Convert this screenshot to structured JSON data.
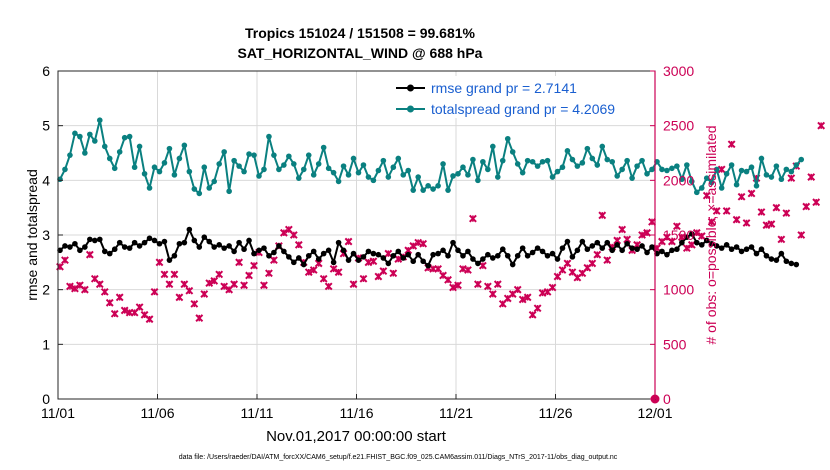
{
  "chart_data": {
    "type": "line",
    "title_line1": "Tropics 151024 / 151508 = 99.681%",
    "title_line2": "SAT_HORIZONTAL_WIND @ 688 hPa",
    "xlabel": "Nov.01,2017 00:00:00 start",
    "ylabel_left": "rmse and totalspread",
    "ylabel_right": "# of obs: o=possible; ×=assimilated",
    "footer": "data file: /Users/raeder/DAI/ATM_forcXX/CAM6_setup/f.e21.FHIST_BGC.f09_025.CAM6assim.011/Diags_NTrS_2017-11/obs_diag_output.nc",
    "x_tick_labels": [
      "11/01",
      "11/06",
      "11/11",
      "11/16",
      "11/21",
      "11/26",
      "12/01"
    ],
    "x_ticks_days": [
      0,
      5,
      10,
      15,
      20,
      25,
      30
    ],
    "xlim_days": [
      0,
      30
    ],
    "ylim_left": [
      0,
      6
    ],
    "y_ticks_left": [
      "0",
      "1",
      "2",
      "3",
      "4",
      "5",
      "6"
    ],
    "ylim_right": [
      0,
      3000
    ],
    "y_ticks_right": [
      "0",
      "500",
      "1000",
      "1500",
      "2000",
      "2500",
      "3000"
    ],
    "legend": [
      "rmse grand pr = 2.7141",
      "totalspread grand pr = 4.2069"
    ],
    "legend_position": "top-right",
    "colors": {
      "rmse": "#000000",
      "totalspread": "#0a8080",
      "obs": "#cc0055",
      "legend_text": "#1a5fd0"
    },
    "time_step_days": 0.25,
    "series": [
      {
        "name": "rmse",
        "axis": "left",
        "values": [
          2.72,
          2.8,
          2.78,
          2.84,
          2.72,
          2.78,
          2.92,
          2.9,
          2.92,
          2.7,
          2.66,
          2.74,
          2.86,
          2.78,
          2.76,
          2.86,
          2.8,
          2.86,
          2.94,
          2.9,
          2.84,
          2.88,
          2.54,
          2.62,
          2.84,
          2.86,
          3.1,
          2.9,
          2.78,
          2.96,
          2.88,
          2.78,
          2.82,
          2.76,
          2.8,
          2.7,
          2.86,
          2.74,
          2.9,
          2.66,
          2.72,
          2.76,
          2.62,
          2.68,
          2.8,
          2.7,
          2.6,
          2.5,
          2.58,
          2.46,
          2.62,
          2.7,
          2.56,
          2.66,
          2.72,
          2.5,
          2.86,
          2.72,
          2.54,
          2.66,
          2.54,
          2.6,
          2.7,
          2.66,
          2.64,
          2.58,
          2.48,
          2.62,
          2.7,
          2.58,
          2.64,
          2.52,
          2.64,
          2.52,
          2.44,
          2.64,
          2.66,
          2.72,
          2.62,
          2.86,
          2.72,
          2.62,
          2.7,
          2.56,
          2.48,
          2.56,
          2.64,
          2.58,
          2.62,
          2.74,
          2.62,
          2.46,
          2.62,
          2.76,
          2.62,
          2.68,
          2.76,
          2.7,
          2.62,
          2.66,
          2.56,
          2.76,
          2.88,
          2.6,
          2.72,
          2.88,
          2.74,
          2.8,
          2.86,
          2.76,
          2.86,
          2.72,
          2.82,
          2.72,
          2.84,
          2.76,
          2.74,
          2.8,
          2.68,
          2.78,
          2.66,
          2.7,
          2.64,
          2.72,
          2.74,
          2.86,
          2.96,
          3.02,
          2.86,
          2.82,
          2.9,
          2.84,
          2.8,
          2.76,
          2.82,
          2.74,
          2.78,
          2.7,
          2.74,
          2.78,
          2.66,
          2.74,
          2.62,
          2.56,
          2.54,
          2.66,
          2.52,
          2.48,
          2.46
        ]
      },
      {
        "name": "totalspread",
        "axis": "left",
        "values": [
          4.02,
          4.2,
          4.46,
          4.86,
          4.8,
          4.5,
          4.84,
          4.72,
          5.1,
          4.62,
          4.4,
          4.22,
          4.52,
          4.78,
          4.8,
          4.24,
          4.62,
          4.12,
          3.86,
          4.24,
          4.16,
          4.32,
          4.58,
          4.1,
          4.4,
          4.64,
          4.16,
          3.84,
          3.76,
          4.24,
          3.86,
          3.98,
          4.3,
          4.52,
          3.8,
          4.36,
          4.26,
          4.16,
          4.48,
          4.46,
          4.08,
          4.2,
          4.8,
          4.46,
          4.2,
          4.28,
          4.44,
          4.3,
          4.04,
          4.2,
          4.46,
          4.1,
          4.3,
          4.6,
          4.22,
          4.14,
          3.98,
          4.26,
          4.1,
          4.4,
          4.14,
          4.28,
          4.06,
          4.0,
          4.18,
          4.36,
          4.06,
          4.24,
          4.4,
          4.1,
          4.18,
          3.82,
          4.06,
          3.82,
          3.9,
          3.84,
          3.9,
          4.3,
          3.82,
          4.08,
          4.12,
          4.24,
          4.1,
          4.38,
          4.0,
          4.34,
          4.2,
          4.62,
          4.06,
          4.36,
          4.76,
          4.52,
          4.3,
          4.14,
          4.36,
          4.34,
          4.26,
          4.34,
          4.36,
          4.06,
          4.16,
          4.24,
          4.54,
          4.38,
          4.26,
          4.32,
          4.58,
          4.4,
          4.28,
          4.62,
          4.38,
          4.34,
          4.08,
          4.2,
          4.36,
          4.04,
          4.26,
          4.36,
          4.12,
          4.2,
          4.34,
          4.2,
          4.18,
          4.22,
          4.26,
          4.02,
          4.28,
          3.98,
          3.78,
          3.86,
          4.04,
          3.96,
          4.2,
          3.86,
          4.12,
          4.28,
          3.92,
          4.18,
          4.16,
          4.24,
          3.9,
          4.4,
          4.1,
          4.06,
          4.26,
          4.02,
          4.2,
          4.16,
          4.28,
          4.38
        ]
      },
      {
        "name": "obs_assimilated",
        "axis": "right",
        "values": [
          1210,
          1270,
          1030,
          1010,
          1040,
          1000,
          1320,
          1100,
          1050,
          980,
          880,
          780,
          930,
          810,
          790,
          790,
          840,
          770,
          730,
          980,
          1250,
          1140,
          1050,
          1140,
          930,
          1050,
          990,
          870,
          740,
          960,
          1060,
          1080,
          1140,
          1030,
          1000,
          1050,
          1250,
          1040,
          1130,
          1220,
          1340,
          1040,
          1150,
          1270,
          1400,
          1520,
          1550,
          1500,
          1410,
          1250,
          1160,
          1180,
          1240,
          1100,
          1030,
          1190,
          1160,
          1330,
          1440,
          1050,
          1290,
          1100,
          1250,
          1260,
          1120,
          1170,
          1330,
          1150,
          1280,
          1300,
          1360,
          1400,
          1430,
          1420,
          1200,
          1190,
          1190,
          1130,
          1090,
          1020,
          1040,
          1190,
          1180,
          1650,
          1050,
          1220,
          1030,
          960,
          1050,
          870,
          920,
          960,
          1000,
          910,
          930,
          770,
          830,
          970,
          980,
          1020,
          1120,
          1180,
          1240,
          1160,
          1110,
          1150,
          1200,
          1240,
          1320,
          1680,
          1270,
          1390,
          1450,
          1550,
          1460,
          1360,
          1410,
          1500,
          1520,
          1620,
          1380,
          1440,
          1480,
          1440,
          1580,
          1480,
          1380,
          1410,
          1520,
          1490,
          1860,
          1620,
          1720,
          2100,
          1720,
          2330,
          1640,
          1850,
          1610,
          1880,
          2020,
          1710,
          1590,
          1600,
          1750,
          1460,
          1700,
          2020,
          2130,
          1500,
          1760,
          2030,
          1800,
          2500
        ]
      }
    ],
    "obs_possible_final_point": {
      "x_days": 30,
      "value": 0
    }
  }
}
